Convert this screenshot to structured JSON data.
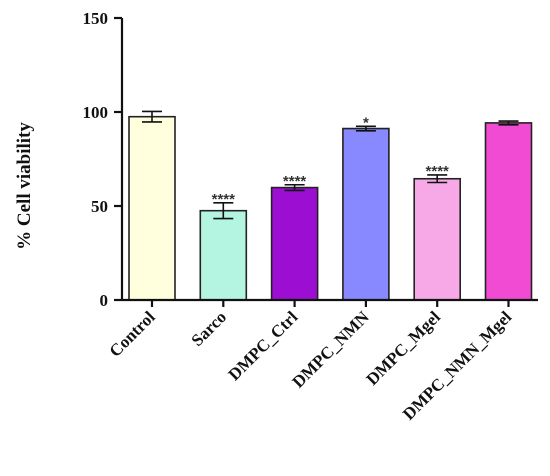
{
  "chart_data": {
    "type": "bar",
    "ylabel": "% Cell viability",
    "ylim": [
      0,
      150
    ],
    "yticks": [
      0,
      50,
      100,
      150
    ],
    "categories": [
      "Control",
      "Sarco",
      "DMPC_Ctrl",
      "DMPC_NMN",
      "DMPC_Mgel",
      "DMPC_NMN_Mgel"
    ],
    "values": [
      97.5,
      47.5,
      59.8,
      91.2,
      64.5,
      94.2
    ],
    "errors": [
      2.8,
      4.2,
      1.5,
      1.2,
      2.0,
      1.0
    ],
    "significance": [
      "",
      "****",
      "****",
      "*",
      "****",
      ""
    ],
    "colors": [
      "#FFFFDD",
      "#B3F5E0",
      "#9C0FD2",
      "#8888FF",
      "#F7A8E6",
      "#F24BD3"
    ],
    "grid": false,
    "legend": "none"
  }
}
